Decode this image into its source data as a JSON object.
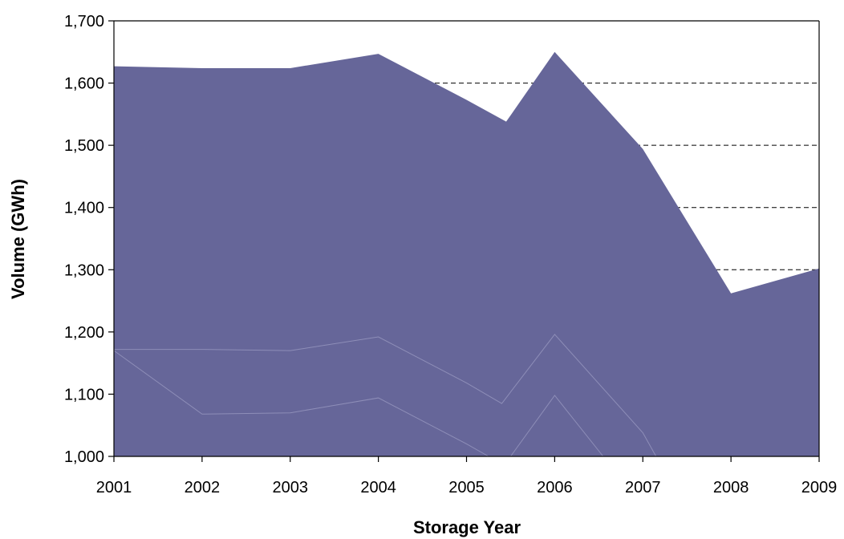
{
  "chart_data": {
    "type": "area",
    "title": "",
    "xlabel": "Storage Year",
    "ylabel": "Volume (GWh)",
    "x": [
      "2001",
      "2002",
      "2003",
      "2004",
      "2005",
      "2006",
      "2007",
      "2008",
      "2009"
    ],
    "ylim": [
      1000,
      1700
    ],
    "yticks": [
      "1,000",
      "1,100",
      "1,200",
      "1,300",
      "1,400",
      "1,500",
      "1,600",
      "1,700"
    ],
    "grid": "horizontal dashed",
    "fill_color": "#666699",
    "series": [
      {
        "points": [
          [
            2001,
            1627
          ],
          [
            2002,
            1624
          ],
          [
            2003,
            1624
          ],
          [
            2004,
            1647
          ],
          [
            2005,
            1573
          ],
          [
            2005.45,
            1538
          ],
          [
            2006,
            1650
          ],
          [
            2007,
            1494
          ],
          [
            2008,
            1262
          ],
          [
            2009,
            1302
          ]
        ]
      },
      {
        "points": [
          [
            2001,
            1172
          ],
          [
            2002,
            1172
          ],
          [
            2003,
            1170
          ],
          [
            2004,
            1192
          ],
          [
            2005,
            1118
          ],
          [
            2005.4,
            1085
          ],
          [
            2006,
            1196
          ],
          [
            2007,
            1038
          ],
          [
            2007.15,
            1000
          ]
        ]
      },
      {
        "points": [
          [
            2001,
            1170
          ],
          [
            2002,
            1068
          ],
          [
            2003,
            1070
          ],
          [
            2004,
            1094
          ],
          [
            2005,
            1020
          ],
          [
            2005.25,
            1000
          ]
        ]
      },
      {
        "points": [
          [
            2005.5,
            1000
          ],
          [
            2006,
            1098
          ],
          [
            2006.55,
            1000
          ]
        ]
      }
    ]
  }
}
